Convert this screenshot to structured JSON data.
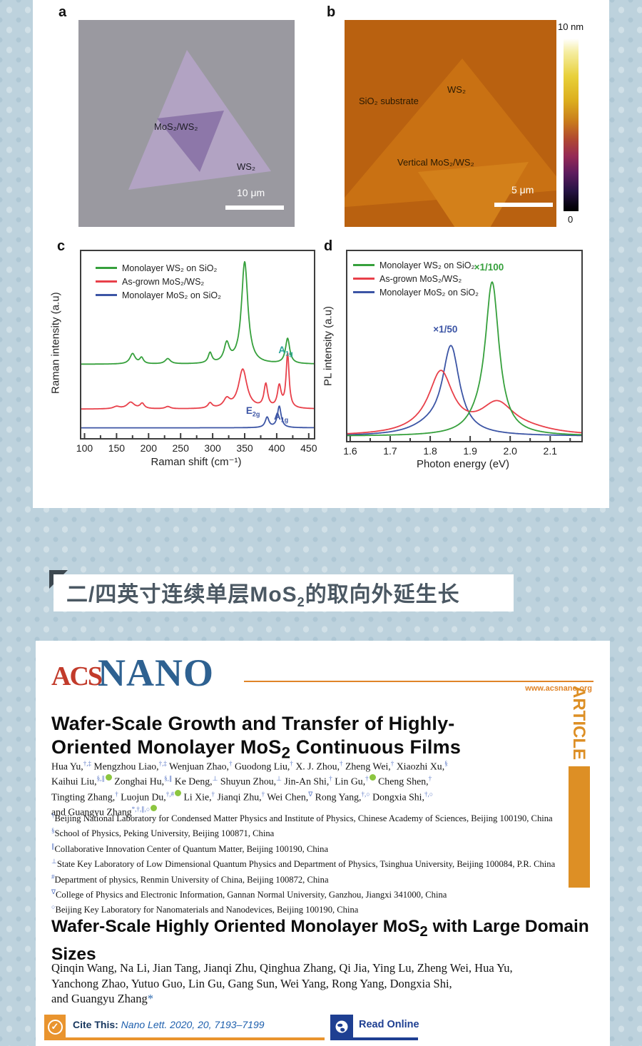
{
  "figure": {
    "panel_a": {
      "tag": "a",
      "heterostructure_label": "MoS₂/WS₂",
      "ws2_label": "WS₂",
      "scalebar_label": "10 μm"
    },
    "panel_b": {
      "tag": "b",
      "substrate_label": "SiO₂ substrate",
      "ws2_label": "WS₂",
      "vertical_label": "Vertical MoS₂/WS₂",
      "scalebar_label": "5 μm",
      "colorbar_max": "10 nm",
      "colorbar_min": "0"
    },
    "panel_c": {
      "tag": "c"
    },
    "panel_d": {
      "tag": "d"
    }
  },
  "heading": {
    "text_html": "二/四英寸连续单层MoS<sub>2</sub>的取向外延生长"
  },
  "article": {
    "logo_acs": "ACS",
    "logo_nano": "NANO",
    "website": "www.acsnano.org",
    "article_tab": "ARTICLE",
    "paper1": {
      "title_html": "Wafer-Scale Growth and Transfer of Highly-<br>Oriented Monolayer MoS<sub>2</sub> Continuous Films",
      "authors_html": "Hua Yu,<sup>†,‡</sup> Mengzhou Liao,<sup>†,‡</sup> Wenjuan Zhao,<sup>†</sup> Guodong Liu,<sup>†</sup> X. J. Zhou,<sup>†</sup> Zheng Wei,<sup>†</sup> Xiaozhi Xu,<sup>§</sup><br>Kaihui Liu,<sup>§,∥</sup><span class='orcid'></span> Zonghai Hu,<sup>§,∥</sup> Ke Deng,<sup>⊥</sup> Shuyun Zhou,<sup>⊥</sup> Jin-An Shi,<sup>†</sup> Lin Gu,<sup>†</sup><span class='orcid'></span> Cheng Shen,<sup>†</sup><br>Tingting Zhang,<sup>†</sup> Luojun Du,<sup>†,#</sup><span class='orcid'></span> Li Xie,<sup>†</sup> Jianqi Zhu,<sup>†</sup> Wei Chen,<sup>∇</sup> Rong Yang,<sup>†,○</sup> Dongxia Shi,<sup>†,○</sup><br>and Guangyu Zhang<sup>*,†,∥,○</sup><span class='orcid'></span>",
      "affiliations_html": [
        "<sup>†</sup>Beijing National Laboratory for Condensed Matter Physics and Institute of Physics, Chinese Academy of Sciences, Beijing 100190, China",
        "<sup>§</sup>School of Physics, Peking University, Beijing 100871, China",
        "<sup>∥</sup>Collaborative Innovation Center of Quantum Matter, Beijing 100190, China",
        "<sup>⊥</sup>State Key Laboratory of Low Dimensional Quantum Physics and Department of Physics, Tsinghua University, Beijing 100084, P.R. China",
        "<sup>#</sup>Department of physics, Renmin University of China, Beijing 100872, China",
        "<sup>∇</sup>College of Physics and Electronic Information, Gannan Normal University, Ganzhou, Jiangxi 341000, China",
        "<sup>○</sup>Beijing Key Laboratory for Nanomaterials and Nanodevices, Beijing 100190, China"
      ]
    },
    "paper2": {
      "title_html": "Wafer-Scale Highly Oriented Monolayer MoS<sub>2</sub> with Large Domain<br>Sizes",
      "authors_html": "Qinqin Wang, Na Li, Jian Tang, Jianqi Zhu, Qinghua Zhang, Qi Jia, Ying Lu, Zheng Wei, Hua Yu,<br>Yanchong Zhao, Yutuo Guo, Lin Gu, Gang Sun, Wei Yang, Rong Yang, Dongxia Shi,<br>and Guangyu Zhang<span class='star'>*</span>"
    },
    "cite_label": "Cite This:",
    "cite_ref": "Nano Lett. 2020, 20, 7193–7199",
    "read_online": "Read Online"
  },
  "chart_data": [
    {
      "id": "raman",
      "type": "line",
      "xlabel": "Raman shift (cm⁻¹)",
      "ylabel": "Raman intensity (a.u)",
      "xlim": [
        95,
        458
      ],
      "xticks": [
        100,
        150,
        200,
        250,
        300,
        350,
        400,
        450
      ],
      "xtick_labels": [
        "100",
        "150",
        "200",
        "250",
        "300",
        "350",
        "400",
        "450"
      ],
      "minor_step": 25,
      "grid": false,
      "legend_pos": [
        20,
        14
      ],
      "legend": [
        "Monolayer WS₂ on SiO₂",
        "As-grown MoS₂/WS₂",
        "Monolayer MoS₂ on SiO₂"
      ],
      "series": [
        {
          "name": "Monolayer WS2 on SiO2",
          "color": "#36a03c",
          "baseline": 0.395,
          "peaks": [
            [
              175,
              5,
              0.055
            ],
            [
              189,
              3.5,
              0.032
            ],
            [
              230,
              5,
              0.028
            ],
            [
              296,
              3.5,
              0.055
            ],
            [
              322,
              5,
              0.1
            ],
            [
              350,
              6,
              0.545
            ],
            [
              417,
              4,
              0.135
            ]
          ]
        },
        {
          "name": "As-grown MoS2/WS2",
          "color": "#e8404a",
          "baseline": 0.155,
          "peaks": [
            [
              150,
              6,
              0.012
            ],
            [
              172,
              7,
              0.035
            ],
            [
              190,
              4,
              0.028
            ],
            [
              230,
              5,
              0.012
            ],
            [
              296,
              4,
              0.028
            ],
            [
              322,
              6,
              0.045
            ],
            [
              347,
              8,
              0.21
            ],
            [
              383,
              3.5,
              0.125
            ],
            [
              404,
              3.5,
              0.115
            ],
            [
              417,
              2.8,
              0.29
            ]
          ]
        },
        {
          "name": "Monolayer MoS2 on SiO2",
          "color": "#3c55a5",
          "baseline": 0.055,
          "peaks": [
            [
              385,
              3.5,
              0.055
            ],
            [
              404,
              3.5,
              0.115
            ]
          ]
        }
      ],
      "annotations": [
        {
          "html": "A<sub>1g</sub>",
          "x": 414,
          "yfrac": 0.5,
          "color": "#27a39a"
        },
        {
          "html": "E<sub>2g</sub>",
          "x": 363,
          "yfrac": 0.175,
          "color": "#3c55a5"
        },
        {
          "html": "A<sub>1g</sub>",
          "x": 407,
          "yfrac": 0.145,
          "color": "#3c55a5"
        }
      ]
    },
    {
      "id": "pl",
      "type": "line",
      "xlabel": "Photon energy (eV)",
      "ylabel": "PL intensity (a.u)",
      "xlim": [
        1.593,
        2.178
      ],
      "xticks": [
        1.6,
        1.7,
        1.8,
        1.9,
        2.0,
        2.1
      ],
      "xtick_labels": [
        "1.6",
        "1.7",
        "1.8",
        "1.9",
        "2.0",
        "2.1"
      ],
      "minor_step": 0.05,
      "grid": false,
      "legend_pos": [
        8,
        10
      ],
      "legend": [
        "Monolayer WS₂ on SiO₂",
        "As-grown MoS₂/WS₂",
        "Monolayer MoS₂ on SiO₂"
      ],
      "series": [
        {
          "name": "Monolayer WS2 on SiO2",
          "color": "#36a03c",
          "baseline": 0.025,
          "peaks": [
            [
              1.955,
              0.021,
              0.79
            ],
            [
              1.92,
              0.035,
              0.045
            ]
          ]
        },
        {
          "name": "As-grown MoS2/WS2",
          "color": "#e8404a",
          "baseline": 0.025,
          "peaks": [
            [
              1.827,
              0.036,
              0.3
            ],
            [
              1.8,
              0.07,
              0.03
            ],
            [
              1.968,
              0.052,
              0.155
            ],
            [
              2.05,
              0.08,
              0.02
            ]
          ]
        },
        {
          "name": "Monolayer MoS2 on SiO2",
          "color": "#3c55a5",
          "baseline": 0.025,
          "peaks": [
            [
              1.852,
              0.026,
              0.455
            ],
            [
              1.8,
              0.06,
              0.04
            ]
          ]
        }
      ],
      "annotations": [
        {
          "html": "×1/100",
          "x": 1.947,
          "yfrac": 0.945,
          "color": "#36a03c"
        },
        {
          "html": "×1/50",
          "x": 1.838,
          "yfrac": 0.615,
          "color": "#3c55a5"
        }
      ]
    }
  ]
}
